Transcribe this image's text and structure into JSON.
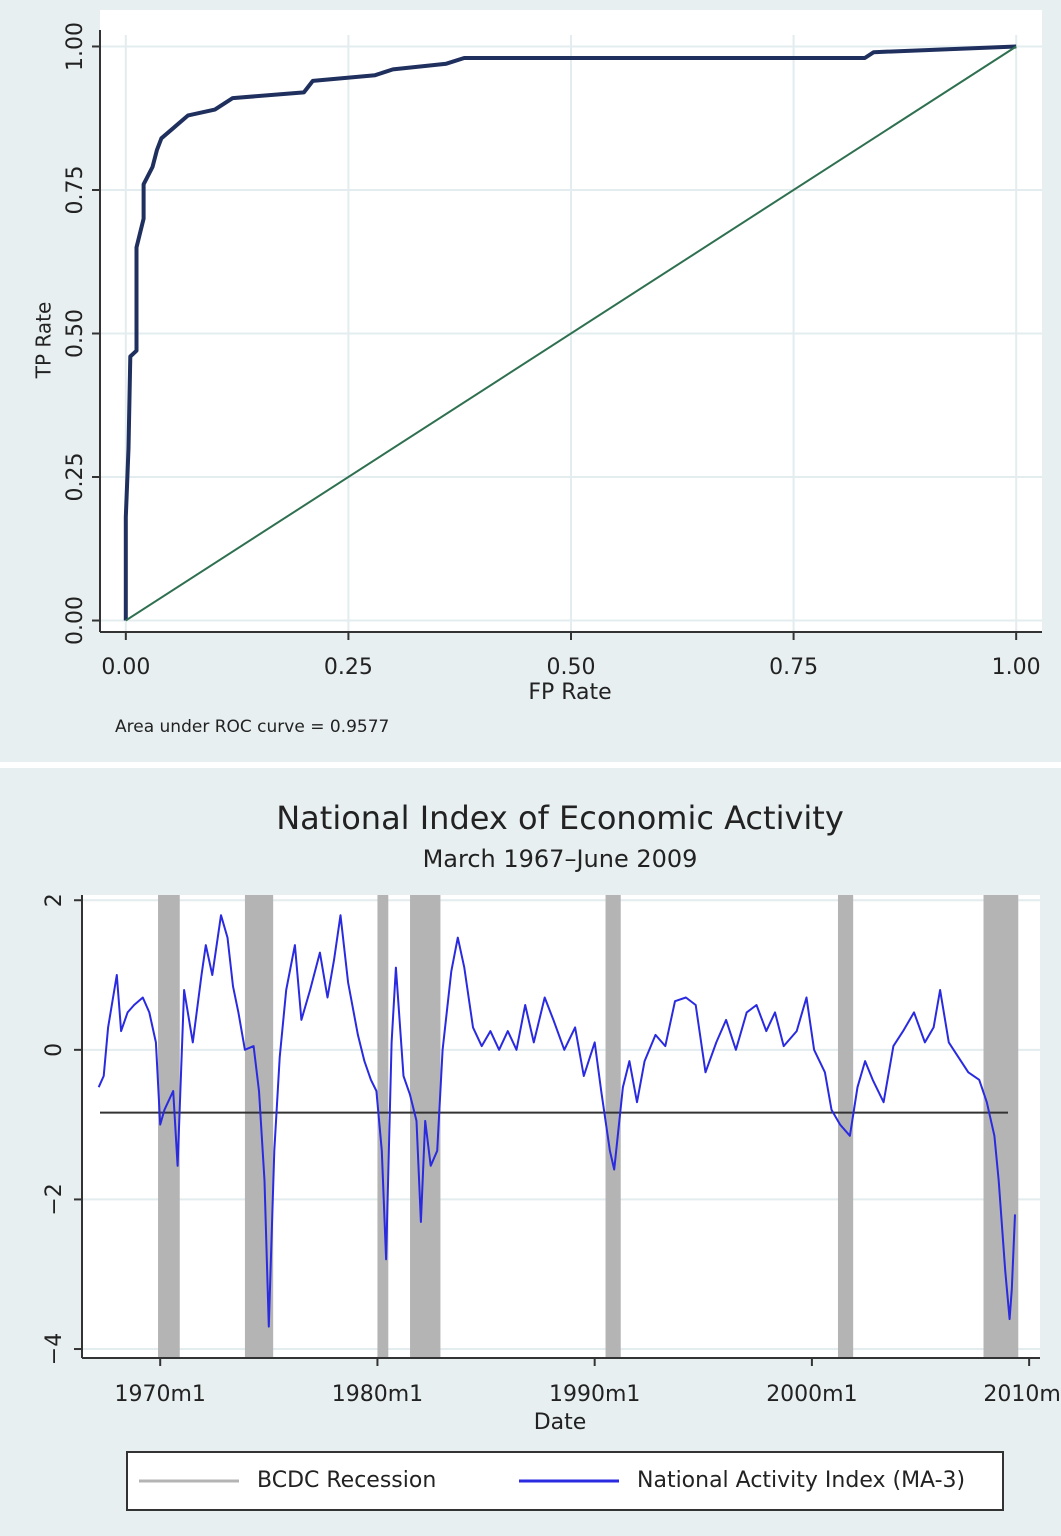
{
  "chart_data": [
    {
      "type": "line",
      "xlabel": "FP Rate",
      "ylabel": "TP Rate",
      "note": "Area under ROC curve = 0.9577",
      "xlim": [
        -0.029,
        1.029
      ],
      "ylim": [
        -0.02,
        1.02
      ],
      "xticks": [
        {
          "value": 0,
          "label": "0.00"
        },
        {
          "value": 0.25,
          "label": "0.25"
        },
        {
          "value": 0.5,
          "label": "0.50"
        },
        {
          "value": 0.75,
          "label": "0.75"
        },
        {
          "value": 1,
          "label": "1.00"
        }
      ],
      "yticks": [
        {
          "value": 0,
          "label": "0.00"
        },
        {
          "value": 0.25,
          "label": "0.25"
        },
        {
          "value": 0.5,
          "label": "0.50"
        },
        {
          "value": 0.75,
          "label": "0.75"
        },
        {
          "value": 1,
          "label": "1.00"
        }
      ],
      "grid": "both",
      "series": [
        {
          "color": "#1f2f5e",
          "x": [
            0,
            0,
            0.003,
            0.005,
            0.012,
            0.012,
            0.02,
            0.02,
            0.03,
            0.035,
            0.04,
            0.055,
            0.07,
            0.1,
            0.12,
            0.2,
            0.21,
            0.28,
            0.3,
            0.36,
            0.38,
            0.83,
            0.84,
            1
          ],
          "values": [
            0,
            0.18,
            0.3,
            0.46,
            0.47,
            0.65,
            0.7,
            0.76,
            0.79,
            0.82,
            0.84,
            0.86,
            0.88,
            0.89,
            0.91,
            0.92,
            0.94,
            0.95,
            0.96,
            0.97,
            0.98,
            0.98,
            0.99,
            1
          ]
        },
        {
          "color": "#2f7050",
          "x": [
            0,
            1
          ],
          "values": [
            0,
            1
          ]
        }
      ]
    },
    {
      "type": "line",
      "title": "National Index of Economic Activity",
      "subtitle": "March 1967–June 2009",
      "xlabel": "Date",
      "xlim": [
        1966.4,
        2010.5
      ],
      "ylim": [
        -4.12,
        2.07
      ],
      "xticks": [
        {
          "value": 1970,
          "label": "1970m1"
        },
        {
          "value": 1980,
          "label": "1980m1"
        },
        {
          "value": 1990,
          "label": "1990m1"
        },
        {
          "value": 2000,
          "label": "2000m1"
        },
        {
          "value": 2010,
          "label": "2010m1"
        }
      ],
      "yticks": [
        2,
        0,
        {
          "value": -2,
          "label": "−2"
        },
        {
          "value": -4,
          "label": "−4"
        }
      ],
      "grid": "y",
      "legend": "bottom",
      "hline": {
        "value": -0.84,
        "color": "#333333"
      },
      "series": [
        {
          "name": "BCDC Recession",
          "color": "#b4b4b4",
          "start": [
            1969.9,
            1973.9,
            1980.0,
            1981.5,
            1990.5,
            2001.2,
            2007.9
          ],
          "end": [
            1970.9,
            1975.2,
            1980.5,
            1982.9,
            1991.2,
            2001.9,
            2009.5
          ]
        },
        {
          "name": "National Activity Index (MA-3)",
          "color": "#2a2ae0",
          "x": [
            1967.17,
            1967.4,
            1967.6,
            1968.0,
            1968.2,
            1968.5,
            1968.8,
            1969.2,
            1969.5,
            1969.8,
            1970.0,
            1970.2,
            1970.6,
            1970.8,
            1971.1,
            1971.5,
            1971.9,
            1972.1,
            1972.4,
            1972.8,
            1973.1,
            1973.35,
            1973.6,
            1973.9,
            1974.3,
            1974.55,
            1974.8,
            1975.0,
            1975.25,
            1975.5,
            1975.8,
            1976.2,
            1976.5,
            1976.9,
            1977.35,
            1977.7,
            1978.0,
            1978.3,
            1978.65,
            1979.1,
            1979.4,
            1979.7,
            1979.95,
            1980.2,
            1980.4,
            1980.65,
            1980.85,
            1981.2,
            1981.5,
            1981.8,
            1982.0,
            1982.2,
            1982.45,
            1982.75,
            1983.0,
            1983.4,
            1983.7,
            1984.0,
            1984.4,
            1984.8,
            1985.2,
            1985.6,
            1986.0,
            1986.4,
            1986.8,
            1987.2,
            1987.7,
            1988.1,
            1988.6,
            1989.1,
            1989.5,
            1990.0,
            1990.3,
            1990.7,
            1990.9,
            1991.3,
            1991.6,
            1991.95,
            1992.3,
            1992.8,
            1993.25,
            1993.7,
            1994.2,
            1994.65,
            1995.1,
            1995.6,
            1996.05,
            1996.5,
            1997.0,
            1997.45,
            1997.9,
            1998.3,
            1998.7,
            1999.3,
            1999.75,
            2000.1,
            2000.6,
            2000.9,
            2001.3,
            2001.75,
            2002.1,
            2002.45,
            2002.8,
            2003.3,
            2003.75,
            2004.2,
            2004.7,
            2005.2,
            2005.6,
            2005.9,
            2006.3,
            2006.75,
            2007.2,
            2007.7,
            2008.05,
            2008.4,
            2008.6,
            2008.9,
            2009.1,
            2009.2,
            2009.35
          ],
          "values": [
            -0.5,
            -0.35,
            0.3,
            1.0,
            0.25,
            0.5,
            0.6,
            0.7,
            0.5,
            0.1,
            -1.0,
            -0.8,
            -0.55,
            -1.55,
            0.8,
            0.1,
            1.0,
            1.4,
            1.0,
            1.8,
            1.5,
            0.85,
            0.5,
            0.0,
            0.05,
            -0.55,
            -1.75,
            -3.7,
            -1.35,
            -0.1,
            0.8,
            1.4,
            0.4,
            0.8,
            1.3,
            0.7,
            1.2,
            1.8,
            0.9,
            0.2,
            -0.15,
            -0.4,
            -0.55,
            -1.35,
            -2.8,
            0.1,
            1.1,
            -0.35,
            -0.6,
            -0.95,
            -2.3,
            -0.95,
            -1.55,
            -1.35,
            0.0,
            1.05,
            1.5,
            1.1,
            0.3,
            0.05,
            0.25,
            0.0,
            0.25,
            0.0,
            0.6,
            0.1,
            0.7,
            0.4,
            0.0,
            0.3,
            -0.35,
            0.1,
            -0.55,
            -1.35,
            -1.6,
            -0.5,
            -0.15,
            -0.7,
            -0.15,
            0.2,
            0.05,
            0.65,
            0.7,
            0.6,
            -0.3,
            0.1,
            0.4,
            0.0,
            0.5,
            0.6,
            0.25,
            0.5,
            0.05,
            0.25,
            0.7,
            0.0,
            -0.3,
            -0.8,
            -1.0,
            -1.15,
            -0.5,
            -0.15,
            -0.4,
            -0.7,
            0.05,
            0.25,
            0.5,
            0.1,
            0.3,
            0.8,
            0.1,
            -0.1,
            -0.3,
            -0.4,
            -0.7,
            -1.15,
            -1.75,
            -2.95,
            -3.6,
            -3.2,
            -2.2
          ]
        }
      ]
    }
  ]
}
